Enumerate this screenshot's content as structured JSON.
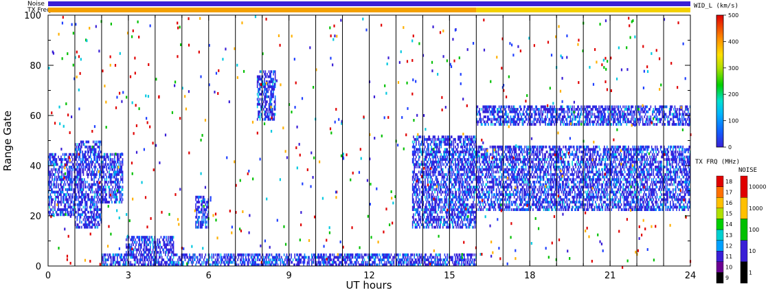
{
  "chart_data": {
    "type": "heatmap",
    "xlabel": "UT hours",
    "ylabel": "Range Gate",
    "xlim": [
      0,
      24
    ],
    "ylim": [
      0,
      100
    ],
    "x_ticks": [
      "0",
      "3",
      "6",
      "9",
      "12",
      "15",
      "18",
      "21",
      "24"
    ],
    "x_tick_values": [
      0,
      3,
      6,
      9,
      12,
      15,
      18,
      21,
      24
    ],
    "y_ticks": [
      "0",
      "20",
      "40",
      "60",
      "80",
      "100"
    ],
    "y_tick_values": [
      0,
      20,
      40,
      60,
      80,
      100
    ],
    "scan_boundaries_hours": [
      1,
      2,
      3,
      4,
      5,
      6,
      7,
      8,
      9,
      10,
      11,
      12,
      13,
      14,
      15,
      16,
      17,
      18,
      19,
      20,
      21,
      22,
      23
    ],
    "top_bars": [
      {
        "label": "Noise",
        "segments": [
          {
            "start": 0,
            "end": 24,
            "color": "#3a1fd6"
          }
        ]
      },
      {
        "label": "TX Freq",
        "segments": [
          {
            "start": 0,
            "end": 16,
            "color": "#f3a000"
          },
          {
            "start": 16,
            "end": 24,
            "color": "#f3d000"
          }
        ]
      }
    ],
    "echo_regions": [
      {
        "x": [
          0,
          1.0
        ],
        "y": [
          20,
          45
        ],
        "level": "low"
      },
      {
        "x": [
          1.0,
          2.0
        ],
        "y": [
          15,
          50
        ],
        "level": "low"
      },
      {
        "x": [
          2.0,
          2.8
        ],
        "y": [
          25,
          45
        ],
        "level": "low"
      },
      {
        "x": [
          2.9,
          4.7
        ],
        "y": [
          5,
          12
        ],
        "level": "low"
      },
      {
        "x": [
          5.5,
          6.0
        ],
        "y": [
          15,
          28
        ],
        "level": "low"
      },
      {
        "x": [
          7.8,
          8.5
        ],
        "y": [
          58,
          78
        ],
        "level": "low"
      },
      {
        "x": [
          13.6,
          16.0
        ],
        "y": [
          15,
          52
        ],
        "level": "low"
      },
      {
        "x": [
          16.0,
          24.0
        ],
        "y": [
          22,
          48
        ],
        "level": "low"
      },
      {
        "x": [
          16.0,
          24.0
        ],
        "y": [
          56,
          64
        ],
        "level": "low"
      },
      {
        "x": [
          2.0,
          16.0
        ],
        "y": [
          0,
          5
        ],
        "level": "low"
      }
    ],
    "colorbars": [
      {
        "title": "WID_L (km/s)",
        "min": 0,
        "max": 500,
        "ticks": [
          "0",
          "100",
          "200",
          "300",
          "400",
          "500"
        ]
      },
      {
        "title": "TX FRQ (MHz)",
        "ticks": [
          "9",
          "10",
          "11",
          "12",
          "13",
          "14",
          "15",
          "16",
          "17",
          "18"
        ]
      },
      {
        "title": "NOISE",
        "ticks": [
          "1",
          "10",
          "100",
          "1000",
          "10000"
        ]
      }
    ]
  }
}
